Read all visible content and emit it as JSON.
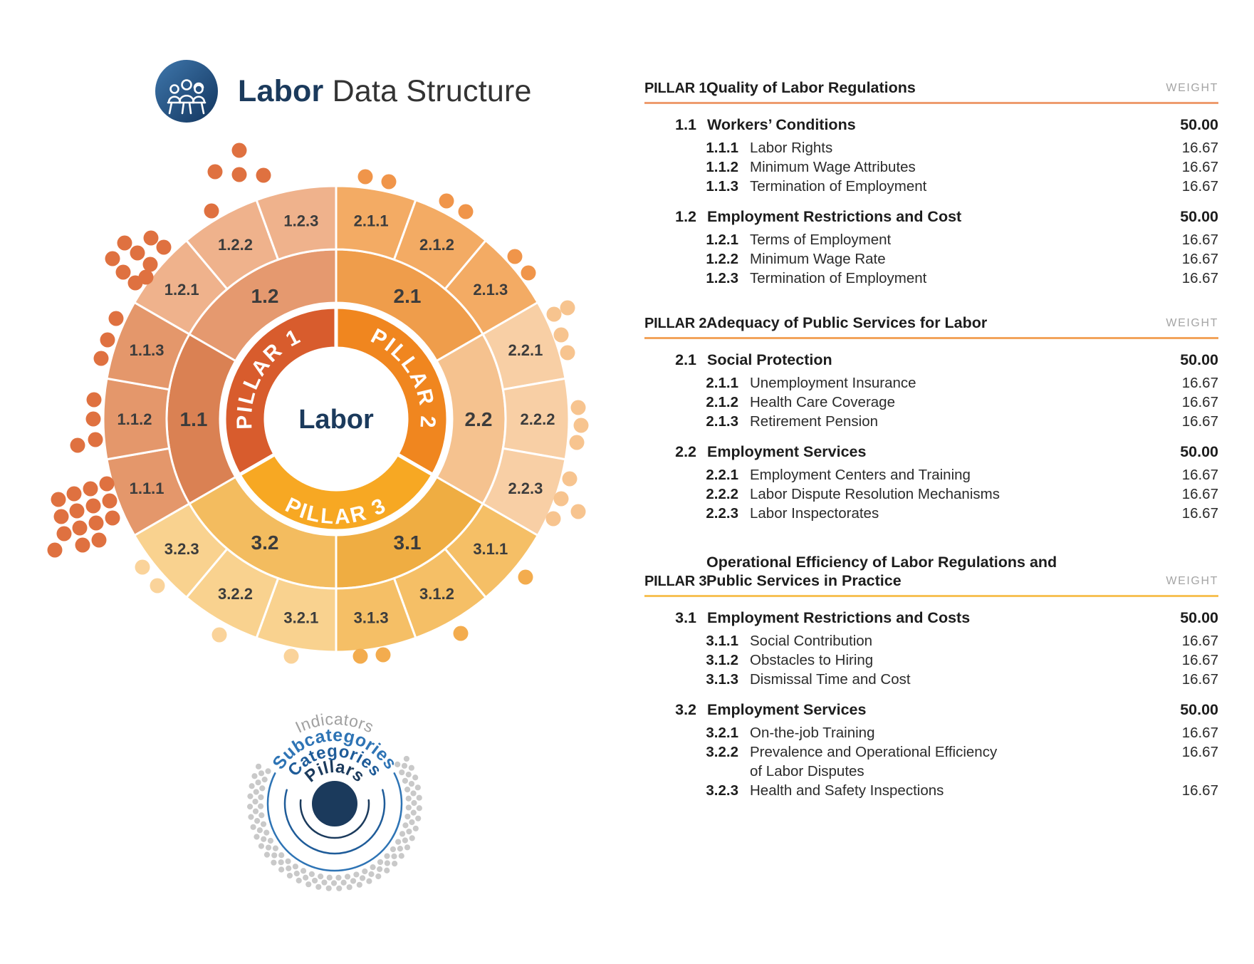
{
  "header": {
    "title_bold": "Labor",
    "title_rest": " Data Structure",
    "logo_icon": "workers-at-table-icon"
  },
  "sunburst": {
    "center_label": "Labor",
    "center_label_color": "#1B3A5C",
    "label_color": "#3C3C3C",
    "pillars": [
      {
        "id": "PILLAR 1",
        "color": "#D85C2D",
        "categories": [
          {
            "id": "1.1",
            "color": "#DA8153",
            "sub_color": "#E4976B",
            "subcategories": [
              {
                "id": "1.1.1"
              },
              {
                "id": "1.1.2"
              },
              {
                "id": "1.1.3"
              }
            ]
          },
          {
            "id": "1.2",
            "color": "#E5996F",
            "sub_color": "#EFB28C",
            "subcategories": [
              {
                "id": "1.2.1"
              },
              {
                "id": "1.2.2"
              },
              {
                "id": "1.2.3"
              }
            ]
          }
        ]
      },
      {
        "id": "PILLAR 2",
        "color": "#F0861F",
        "categories": [
          {
            "id": "2.1",
            "color": "#EF9D4B",
            "sub_color": "#F3AB64",
            "subcategories": [
              {
                "id": "2.1.1"
              },
              {
                "id": "2.1.2"
              },
              {
                "id": "2.1.3"
              }
            ]
          },
          {
            "id": "2.2",
            "color": "#F5C28F",
            "sub_color": "#F8CFA5",
            "subcategories": [
              {
                "id": "2.2.1"
              },
              {
                "id": "2.2.2"
              },
              {
                "id": "2.2.3"
              }
            ]
          }
        ]
      },
      {
        "id": "PILLAR 3",
        "color": "#F7A823",
        "categories": [
          {
            "id": "3.1",
            "color": "#EFAD42",
            "sub_color": "#F5BF66",
            "subcategories": [
              {
                "id": "3.1.1"
              },
              {
                "id": "3.1.2"
              },
              {
                "id": "3.1.3"
              }
            ]
          },
          {
            "id": "3.2",
            "color": "#F3BC5F",
            "sub_color": "#F9D28F",
            "subcategories": [
              {
                "id": "3.2.1"
              },
              {
                "id": "3.2.2"
              },
              {
                "id": "3.2.3"
              }
            ]
          }
        ]
      }
    ],
    "indicator_dots": [
      {
        "color": "#DF7140",
        "points": [
          [
            336,
            211
          ],
          [
            302,
            241
          ],
          [
            336,
            245
          ],
          [
            370,
            246
          ],
          [
            297,
            296
          ],
          [
            212,
            334
          ],
          [
            175,
            341
          ],
          [
            230,
            347
          ],
          [
            193,
            355
          ],
          [
            158,
            363
          ],
          [
            211,
            371
          ],
          [
            173,
            382
          ],
          [
            205,
            389
          ],
          [
            190,
            397
          ],
          [
            163,
            447
          ],
          [
            151,
            477
          ],
          [
            142,
            503
          ],
          [
            132,
            561
          ],
          [
            131,
            588
          ],
          [
            134,
            617
          ],
          [
            109,
            625
          ],
          [
            150,
            679
          ],
          [
            127,
            686
          ],
          [
            104,
            693
          ],
          [
            82,
            701
          ],
          [
            154,
            703
          ],
          [
            131,
            710
          ],
          [
            108,
            717
          ],
          [
            86,
            725
          ],
          [
            158,
            727
          ],
          [
            135,
            734
          ],
          [
            112,
            741
          ],
          [
            90,
            749
          ],
          [
            139,
            758
          ],
          [
            116,
            765
          ],
          [
            77,
            772
          ]
        ]
      },
      {
        "color": "#F0954A",
        "points": [
          [
            513,
            248
          ],
          [
            546,
            255
          ],
          [
            627,
            282
          ],
          [
            654,
            297
          ],
          [
            723,
            360
          ],
          [
            742,
            383
          ]
        ]
      },
      {
        "color": "#F7C48F",
        "points": [
          [
            797,
            432
          ],
          [
            778,
            441
          ],
          [
            788,
            470
          ],
          [
            797,
            495
          ],
          [
            812,
            572
          ],
          [
            816,
            597
          ],
          [
            810,
            621
          ],
          [
            800,
            672
          ],
          [
            788,
            700
          ],
          [
            812,
            718
          ],
          [
            777,
            728
          ]
        ]
      },
      {
        "color": "#F3AC4E",
        "points": [
          [
            738,
            810
          ],
          [
            647,
            889
          ],
          [
            538,
            919
          ],
          [
            506,
            921
          ]
        ]
      },
      {
        "color": "#FAD39A",
        "points": [
          [
            409,
            921
          ],
          [
            308,
            891
          ],
          [
            200,
            796
          ],
          [
            221,
            822
          ]
        ]
      }
    ]
  },
  "legend": {
    "rings": [
      {
        "label": "Indicators",
        "color": "#A0A0A0"
      },
      {
        "label": "Subcategories",
        "color": "#2E74B5"
      },
      {
        "label": "Categories",
        "color": "#1F5C99"
      },
      {
        "label": "Pillars",
        "color": "#1B3A5C"
      }
    ]
  },
  "panel": {
    "weight_label": "WEIGHT",
    "pillars": [
      {
        "label": "PILLAR 1",
        "title_lines": [
          "Quality of Labor Regulations"
        ],
        "rule_color": "#EE9C6E",
        "categories": [
          {
            "num": "1.1",
            "title": "Workers’ Conditions",
            "weight": "50.00",
            "subcategories": [
              {
                "num": "1.1.1",
                "title_lines": [
                  "Labor Rights"
                ],
                "weight": "16.67"
              },
              {
                "num": "1.1.2",
                "title_lines": [
                  "Minimum Wage Attributes"
                ],
                "weight": "16.67"
              },
              {
                "num": "1.1.3",
                "title_lines": [
                  "Termination of Employment"
                ],
                "weight": "16.67"
              }
            ]
          },
          {
            "num": "1.2",
            "title": "Employment Restrictions and Cost",
            "weight": "50.00",
            "subcategories": [
              {
                "num": "1.2.1",
                "title_lines": [
                  "Terms of Employment"
                ],
                "weight": "16.67"
              },
              {
                "num": "1.2.2",
                "title_lines": [
                  "Minimum Wage Rate"
                ],
                "weight": "16.67"
              },
              {
                "num": "1.2.3",
                "title_lines": [
                  "Termination of Employment"
                ],
                "weight": "16.67"
              }
            ]
          }
        ]
      },
      {
        "label": "PILLAR 2",
        "title_lines": [
          "Adequacy of Public Services for Labor"
        ],
        "rule_color": "#F2A45C",
        "categories": [
          {
            "num": "2.1",
            "title": "Social Protection",
            "weight": "50.00",
            "subcategories": [
              {
                "num": "2.1.1",
                "title_lines": [
                  "Unemployment Insurance"
                ],
                "weight": "16.67"
              },
              {
                "num": "2.1.2",
                "title_lines": [
                  "Health Care Coverage"
                ],
                "weight": "16.67"
              },
              {
                "num": "2.1.3",
                "title_lines": [
                  "Retirement Pension"
                ],
                "weight": "16.67"
              }
            ]
          },
          {
            "num": "2.2",
            "title": "Employment Services",
            "weight": "50.00",
            "subcategories": [
              {
                "num": "2.2.1",
                "title_lines": [
                  "Employment Centers and Training"
                ],
                "weight": "16.67"
              },
              {
                "num": "2.2.2",
                "title_lines": [
                  "Labor Dispute Resolution Mechanisms"
                ],
                "weight": "16.67"
              },
              {
                "num": "2.2.3",
                "title_lines": [
                  "Labor Inspectorates"
                ],
                "weight": "16.67"
              }
            ]
          }
        ]
      },
      {
        "label": "PILLAR 3",
        "title_lines": [
          "Operational Efficiency of Labor Regulations and",
          "Public Services in Practice"
        ],
        "rule_color": "#F7C155",
        "categories": [
          {
            "num": "3.1",
            "title": "Employment Restrictions and Costs",
            "weight": "50.00",
            "subcategories": [
              {
                "num": "3.1.1",
                "title_lines": [
                  "Social Contribution"
                ],
                "weight": "16.67"
              },
              {
                "num": "3.1.2",
                "title_lines": [
                  "Obstacles to Hiring"
                ],
                "weight": "16.67"
              },
              {
                "num": "3.1.3",
                "title_lines": [
                  "Dismissal Time and Cost"
                ],
                "weight": "16.67"
              }
            ]
          },
          {
            "num": "3.2",
            "title": "Employment Services",
            "weight": "50.00",
            "subcategories": [
              {
                "num": "3.2.1",
                "title_lines": [
                  "On-the-job Training"
                ],
                "weight": "16.67"
              },
              {
                "num": "3.2.2",
                "title_lines": [
                  "Prevalence and Operational Efficiency",
                  "of Labor Disputes"
                ],
                "weight": "16.67"
              },
              {
                "num": "3.2.3",
                "title_lines": [
                  "Health and Safety Inspections"
                ],
                "weight": "16.67"
              }
            ]
          }
        ]
      }
    ]
  }
}
